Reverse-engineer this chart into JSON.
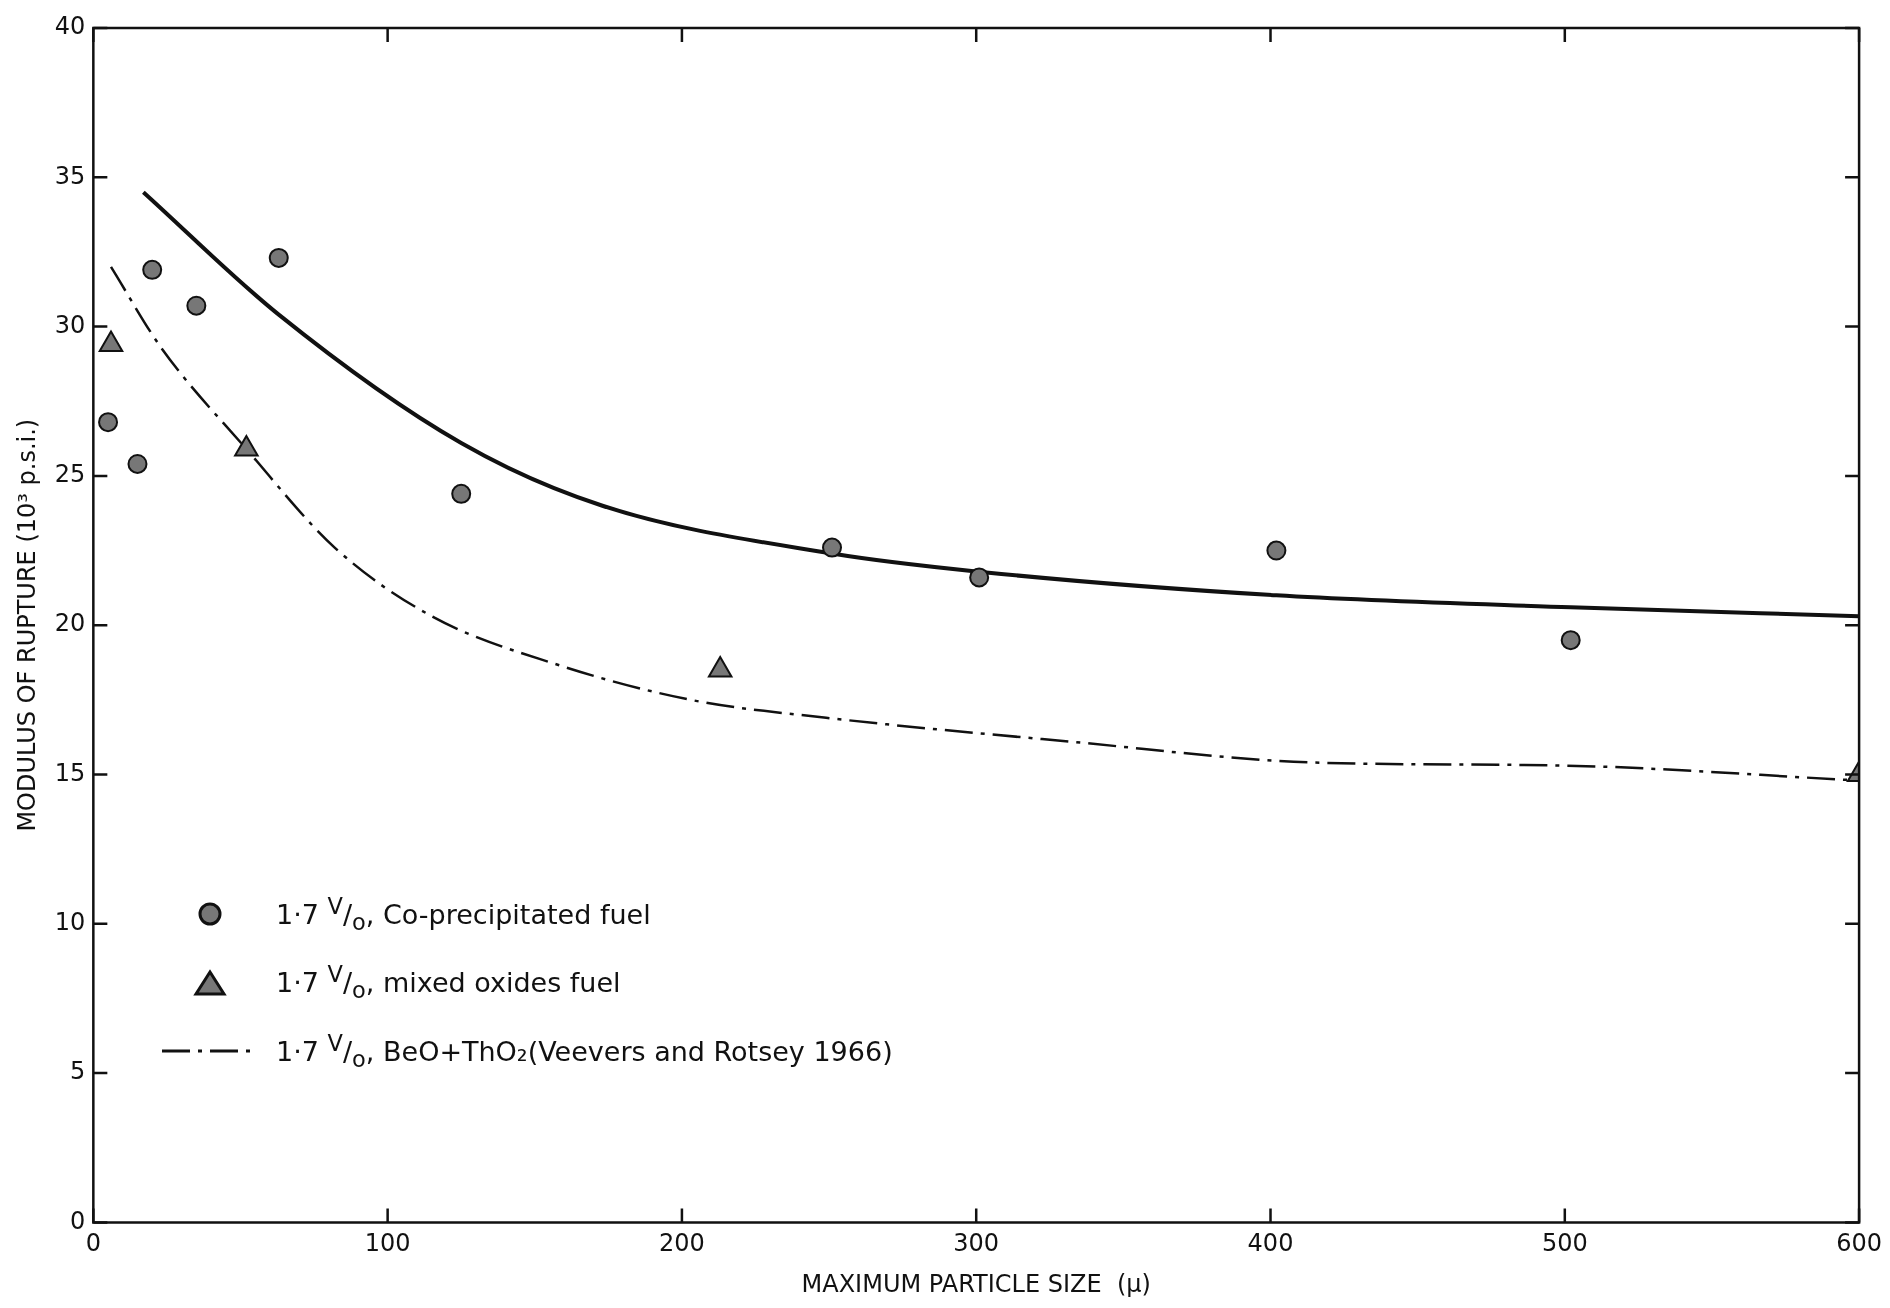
{
  "chart_data": {
    "type": "scatter",
    "xlabel": "MAXIMUM PARTICLE SIZE  (μ)",
    "ylabel": "MODULUS OF RUPTURE (10³ p.s.i.)",
    "xlim": [
      0,
      600
    ],
    "xticks": [
      0,
      100,
      200,
      300,
      400,
      500,
      600
    ],
    "ylim": [
      0,
      40
    ],
    "yticks": [
      0,
      5,
      10,
      15,
      20,
      25,
      30,
      35,
      40
    ],
    "grid": false,
    "legend": "bottom left",
    "series": [
      {
        "name": "1·7 $^{V}$/$_{o}$, Co-precipitated fuel",
        "marker": "circle",
        "color": "#111111",
        "x": [
          5,
          15,
          20,
          35,
          63,
          125,
          251,
          301,
          402,
          502
        ],
        "values": [
          26.8,
          25.4,
          31.9,
          30.7,
          32.3,
          24.4,
          22.6,
          21.6,
          22.5,
          19.5
        ]
      },
      {
        "name": "1·7 $^{V}$/$_{o}$, mixed oxides fuel",
        "marker": "triangle",
        "color": "#111111",
        "x": [
          6,
          52,
          213,
          600
        ],
        "values": [
          29.4,
          25.9,
          18.5,
          15
        ]
      },
      {
        "type": "line",
        "line_style": "solid",
        "color": "#111111",
        "x": [
          17,
          63,
          125,
          173,
          251,
          300,
          402,
          502,
          600
        ],
        "values": [
          34.5,
          30.4,
          26.1,
          24.0,
          22.4,
          21.8,
          21.0,
          20.6,
          20.3
        ]
      },
      {
        "name": "1·7 $^{V}$/$_{o}$, BeO+ThO₂(Veevers and Rotsey 1966)",
        "type": "line",
        "line_style": "dashed",
        "color": "#111111",
        "x": [
          6,
          23,
          52,
          82,
          115,
          157,
          203,
          249,
          332,
          415,
          499,
          600
        ],
        "values": [
          32.0,
          29.3,
          25.9,
          22.6,
          20.3,
          18.7,
          17.5,
          16.9,
          16.1,
          15.4,
          15.3,
          14.8
        ]
      }
    ]
  }
}
